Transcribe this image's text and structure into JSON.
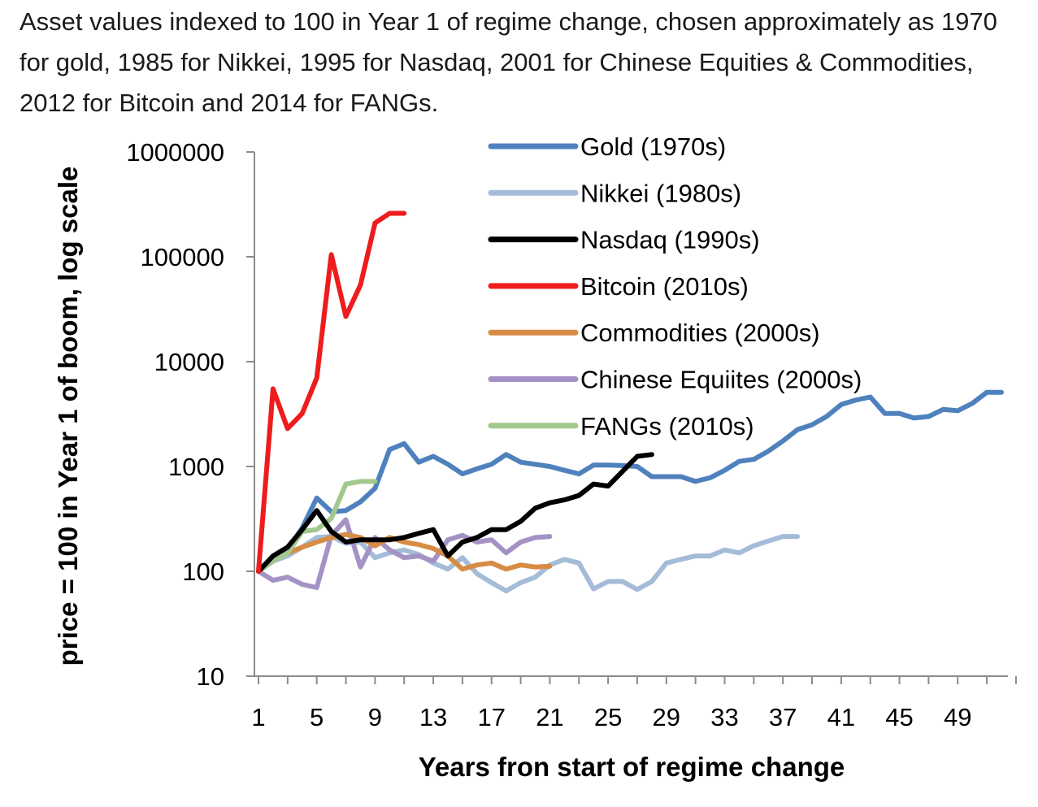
{
  "chart_data": {
    "type": "line",
    "title": "Asset values indexed to 100 in Year 1 of regime change, chosen approximately as 1970 for gold, 1985 for Nikkei, 1995 for Nasdaq, 2001 for Chinese Equities & Commodities, 2012 for Bitcoin and 2014 for FANGs.",
    "xlabel": "Years fron start of regime change",
    "ylabel": "price = 100 in Year 1 of boom, log scale",
    "y_scale": "log",
    "ylim": [
      10,
      1000000
    ],
    "xlim": [
      1,
      52
    ],
    "x_ticks": [
      "1",
      "5",
      "9",
      "13",
      "17",
      "21",
      "25",
      "29",
      "33",
      "37",
      "41",
      "45",
      "49"
    ],
    "y_ticks": [
      "10",
      "100",
      "1000",
      "10000",
      "100000",
      "1000000"
    ],
    "legend_position": "top",
    "grid": false,
    "series": [
      {
        "name": "Gold (1970s)",
        "color": "#4f81bd",
        "x": [
          1,
          2,
          3,
          4,
          5,
          6,
          7,
          8,
          9,
          10,
          11,
          12,
          13,
          14,
          15,
          16,
          17,
          18,
          19,
          20,
          21,
          22,
          23,
          24,
          25,
          26,
          27,
          28,
          29,
          30,
          31,
          32,
          33,
          34,
          35,
          36,
          37,
          38,
          39,
          40,
          41,
          42,
          43,
          44,
          45,
          46,
          47,
          48,
          49,
          50,
          51,
          52
        ],
        "y": [
          100,
          130,
          160,
          260,
          500,
          370,
          380,
          460,
          620,
          1450,
          1650,
          1100,
          1250,
          1050,
          850,
          950,
          1050,
          1300,
          1100,
          1050,
          1000,
          920,
          850,
          1030,
          1030,
          1020,
          1000,
          800,
          800,
          800,
          720,
          780,
          920,
          1120,
          1170,
          1400,
          1750,
          2250,
          2500,
          3000,
          3900,
          4300,
          4600,
          3200,
          3200,
          2900,
          3000,
          3500,
          3400,
          4000,
          5100,
          5100
        ]
      },
      {
        "name": "Nikkei (1980s)",
        "color": "#a5bcd9",
        "x": [
          1,
          2,
          3,
          4,
          5,
          6,
          7,
          8,
          9,
          10,
          11,
          12,
          13,
          14,
          15,
          16,
          17,
          18,
          19,
          20,
          21,
          22,
          23,
          24,
          25,
          26,
          27,
          28,
          29,
          30,
          31,
          32,
          33,
          34,
          35,
          36,
          37,
          38
        ],
        "y": [
          100,
          125,
          140,
          170,
          210,
          215,
          185,
          190,
          135,
          150,
          160,
          145,
          120,
          105,
          135,
          95,
          78,
          65,
          78,
          88,
          115,
          130,
          120,
          68,
          80,
          80,
          67,
          80,
          120,
          130,
          140,
          140,
          160,
          150,
          175,
          195,
          215,
          215
        ]
      },
      {
        "name": "Nasdaq (1990s)",
        "color": "#000000",
        "x": [
          1,
          2,
          3,
          4,
          5,
          6,
          7,
          8,
          9,
          10,
          11,
          12,
          13,
          14,
          15,
          16,
          17,
          18,
          19,
          20,
          21,
          22,
          23,
          24,
          25,
          26,
          27,
          28
        ],
        "y": [
          100,
          140,
          170,
          250,
          380,
          240,
          190,
          200,
          200,
          200,
          210,
          230,
          250,
          140,
          190,
          210,
          250,
          250,
          300,
          400,
          450,
          480,
          530,
          680,
          650,
          900,
          1250,
          1300
        ]
      },
      {
        "name": "Bitcoin (2010s)",
        "color": "#ee1c1c",
        "x": [
          1,
          2,
          3,
          4,
          5,
          6,
          7,
          8,
          9,
          10,
          11
        ],
        "y": [
          100,
          5500,
          2300,
          3200,
          7000,
          105000,
          27000,
          54000,
          210000,
          260000,
          260000
        ]
      },
      {
        "name": "Commodities (2000s)",
        "color": "#d78c45",
        "x": [
          1,
          2,
          3,
          4,
          5,
          6,
          7,
          8,
          9,
          10,
          11,
          12,
          13,
          14,
          15,
          16,
          17,
          18,
          19,
          20,
          21
        ],
        "y": [
          100,
          130,
          150,
          170,
          190,
          210,
          225,
          210,
          175,
          210,
          190,
          180,
          165,
          140,
          105,
          115,
          120,
          105,
          115,
          110,
          112
        ]
      },
      {
        "name": "Chinese Equiites (2000s)",
        "color": "#a592c4",
        "x": [
          1,
          2,
          3,
          4,
          5,
          6,
          7,
          8,
          9,
          10,
          11,
          12,
          13,
          14,
          15,
          16,
          17,
          18,
          19,
          20,
          21
        ],
        "y": [
          100,
          82,
          88,
          75,
          70,
          220,
          310,
          110,
          210,
          160,
          135,
          140,
          125,
          200,
          220,
          190,
          200,
          150,
          190,
          210,
          215
        ]
      },
      {
        "name": "FANGs (2010s)",
        "color": "#a3c88e",
        "x": [
          1,
          2,
          3,
          4,
          5,
          6,
          7,
          8,
          9
        ],
        "y": [
          100,
          125,
          150,
          240,
          250,
          320,
          680,
          720,
          720
        ]
      }
    ]
  }
}
